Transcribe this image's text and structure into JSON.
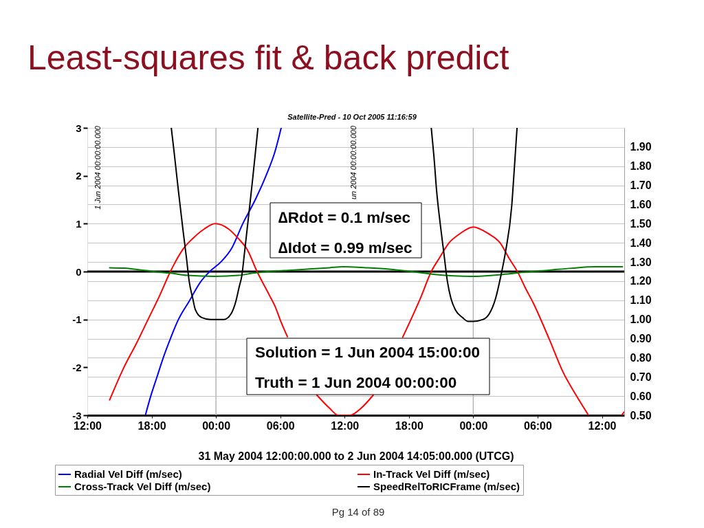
{
  "chart_data": {
    "type": "line",
    "title": "Least-squares fit & back predict",
    "subtitle": "Satellite-Pred - 10 Oct 2005 11:16:59",
    "xlabel": "31 May 2004 12:00:00.000  to  2 Jun 2004 14:05:00.000 (UTCG)",
    "annotations": [
      "1 Jun 2004 00:00:00.000",
      "un 2004 00:00:00.000",
      "∆Rdot = 0.1 m/sec",
      "∆Idot = 0.99 m/sec",
      "Solution = 1 Jun 2004 15:00:00",
      "Truth = 1 Jun 2004 00:00:00",
      "Pg 14 of 89"
    ],
    "xlim": [
      "2004-05-31T12:00",
      "2004-06-02T14:05"
    ],
    "xticks": [
      {
        "value": "2004-05-31T12:00",
        "label": "12:00"
      },
      {
        "value": "2004-05-31T18:00",
        "label": "18:00"
      },
      {
        "value": "2004-06-01T00:00",
        "label": "00:00"
      },
      {
        "value": "2004-06-01T06:00",
        "label": "06:00"
      },
      {
        "value": "2004-06-01T12:00",
        "label": "12:00"
      },
      {
        "value": "2004-06-01T18:00",
        "label": "18:00"
      },
      {
        "value": "2004-06-02T00:00",
        "label": "00:00"
      },
      {
        "value": "2004-06-02T06:00",
        "label": "06:00"
      },
      {
        "value": "2004-06-02T12:00",
        "label": "12:00"
      }
    ],
    "ylim": [
      -3,
      3
    ],
    "yticks": [
      -3,
      -2,
      -1,
      0,
      1,
      2,
      3
    ],
    "y2lim": [
      0.5,
      2.0
    ],
    "y2ticks": [
      {
        "value": 0.5,
        "label": "0.50"
      },
      {
        "value": 0.6,
        "label": "0.60"
      },
      {
        "value": 0.7,
        "label": "0.70"
      },
      {
        "value": 0.8,
        "label": "0.80"
      },
      {
        "value": 0.9,
        "label": "0.90"
      },
      {
        "value": 1.0,
        "label": "1.00"
      },
      {
        "value": 1.1,
        "label": "1.10"
      },
      {
        "value": 1.2,
        "label": "1.20"
      },
      {
        "value": 1.3,
        "label": "1.30"
      },
      {
        "value": 1.4,
        "label": "1.40"
      },
      {
        "value": 1.5,
        "label": "1.50"
      },
      {
        "value": 1.6,
        "label": "1.60"
      },
      {
        "value": 1.7,
        "label": "1.70"
      },
      {
        "value": 1.8,
        "label": "1.80"
      },
      {
        "value": 1.9,
        "label": "1.90"
      }
    ],
    "grid": "y",
    "legend": "bottom",
    "ref_lines": [
      {
        "axis": "x",
        "value": "2004-06-01T00:00",
        "color": "#b4b4b4"
      },
      {
        "axis": "x",
        "value": "2004-06-02T00:00",
        "color": "#b4b4b4"
      },
      {
        "axis": "y",
        "value": 0,
        "color": "#000000"
      }
    ],
    "series": [
      {
        "name": "Radial Vel Diff (m/sec)",
        "color": "#0000ff",
        "x": [
          "2004-05-31T17:25",
          "2004-05-31T17:55",
          "2004-05-31T18:30",
          "2004-05-31T19:05",
          "2004-05-31T19:45",
          "2004-05-31T20:30",
          "2004-05-31T21:30",
          "2004-05-31T22:35",
          "2004-05-31T23:25",
          "2004-06-01T00:30",
          "2004-06-01T01:30",
          "2004-06-01T02:30",
          "2004-06-01T03:40",
          "2004-06-01T04:40",
          "2004-06-01T05:30",
          "2004-06-01T06:05"
        ],
        "values": [
          -3.0,
          -2.6,
          -2.2,
          -1.8,
          -1.4,
          -1.0,
          -0.62,
          -0.21,
          0.0,
          0.21,
          0.5,
          1.0,
          1.5,
          2.0,
          2.5,
          3.0
        ]
      },
      {
        "name": "In-Track Vel Diff (m/sec)",
        "color": "#ff0000",
        "x": [
          "2004-05-31T14:05",
          "2004-05-31T15:25",
          "2004-05-31T16:35",
          "2004-05-31T17:40",
          "2004-05-31T18:45",
          "2004-05-31T19:45",
          "2004-05-31T21:00",
          "2004-05-31T21:50",
          "2004-05-31T22:55",
          "2004-05-31T23:55",
          "2004-06-01T01:10",
          "2004-06-01T02:05",
          "2004-06-01T02:55",
          "2004-06-01T03:50",
          "2004-06-01T05:00",
          "2004-06-01T05:30",
          "2004-06-01T06:05",
          "2004-06-01T06:40",
          "2004-06-01T08:00",
          "2004-06-01T09:25",
          "2004-06-01T10:35",
          "2004-06-01T11:25",
          "2004-06-01T12:30",
          "2004-06-01T13:30",
          "2004-06-01T14:40",
          "2004-06-01T16:00",
          "2004-06-01T17:25",
          "2004-06-01T18:15",
          "2004-06-01T19:05",
          "2004-06-01T20:05",
          "2004-06-01T20:50",
          "2004-06-01T21:45",
          "2004-06-01T22:45",
          "2004-06-02T00:00",
          "2004-06-02T01:25",
          "2004-06-02T02:30",
          "2004-06-02T03:20",
          "2004-06-02T04:10",
          "2004-06-02T04:50",
          "2004-06-02T05:35",
          "2004-06-02T07:05",
          "2004-06-02T08:20",
          "2004-06-02T09:40",
          "2004-06-02T10:45",
          "2004-06-02T12:00",
          "2004-06-02T13:50",
          "2004-06-02T14:05"
        ],
        "values": [
          -2.68,
          -2.0,
          -1.5,
          -1.0,
          -0.5,
          0.0,
          0.49,
          0.69,
          0.89,
          1.0,
          0.89,
          0.69,
          0.46,
          0.0,
          -0.5,
          -0.72,
          -1.06,
          -1.36,
          null,
          -2.58,
          -2.85,
          -3.0,
          -3.0,
          -2.86,
          -2.58,
          null,
          -1.37,
          -0.97,
          -0.55,
          0.0,
          0.28,
          0.6,
          0.79,
          0.93,
          0.79,
          0.6,
          0.28,
          -0.02,
          -0.33,
          -0.65,
          -1.41,
          -2.08,
          -2.61,
          -3.0,
          null,
          -3.0,
          -2.93
        ]
      },
      {
        "name": "Cross-Track Vel Diff (m/sec)",
        "color": "#008000",
        "x": [
          "2004-05-31T14:05",
          "2004-05-31T15:25",
          "2004-05-31T17:30",
          "2004-05-31T18:35",
          "2004-05-31T19:40",
          "2004-05-31T21:20",
          "2004-05-31T23:55",
          "2004-06-01T02:05",
          "2004-06-01T03:35",
          "2004-06-01T04:50",
          "2004-06-01T06:20",
          "2004-06-01T08:30",
          "2004-06-01T10:35",
          "2004-06-01T11:50",
          "2004-06-01T14:00",
          "2004-06-01T16:10",
          "2004-06-01T18:15",
          "2004-06-01T20:25",
          "2004-06-01T23:50",
          "2004-06-02T02:45",
          "2004-06-02T04:55",
          "2004-06-02T07:05",
          "2004-06-02T09:10",
          "2004-06-02T11:20",
          "2004-06-02T13:55"
        ],
        "values": [
          0.08,
          0.07,
          0.02,
          -0.01,
          -0.03,
          -0.08,
          -0.1,
          -0.08,
          -0.03,
          0.0,
          0.02,
          0.05,
          0.08,
          0.1,
          0.08,
          0.05,
          0.0,
          -0.06,
          -0.1,
          -0.06,
          -0.01,
          0.03,
          0.07,
          0.1,
          0.1
        ]
      },
      {
        "name": "SpeedRelToRICFrame (m/sec)",
        "color": "#000000",
        "axis": "y2",
        "x": [
          "2004-05-31T19:50",
          "2004-05-31T20:05",
          "2004-05-31T20:30",
          "2004-05-31T20:55",
          "2004-05-31T21:15",
          "2004-05-31T21:30",
          "2004-05-31T21:50",
          "2004-05-31T22:05",
          "2004-05-31T22:40",
          "2004-05-31T23:30",
          "2004-06-01T00:45",
          "2004-06-01T01:25",
          "2004-06-01T01:50",
          "2004-06-01T02:10",
          "2004-06-01T02:25",
          "2004-06-01T02:40",
          "2004-06-01T03:05",
          "2004-06-01T03:25",
          "2004-06-01T03:45",
          "2004-06-01T03:55",
          "2004-06-01T12:00",
          "2004-06-01T20:05",
          "2004-06-01T20:20",
          "2004-06-01T20:35",
          "2004-06-01T20:55",
          "2004-06-01T21:15",
          "2004-06-01T21:35",
          "2004-06-01T21:55",
          "2004-06-01T22:20",
          "2004-06-01T23:00",
          "2004-06-01T23:30",
          "2004-06-02T00:00",
          "2004-06-02T00:55",
          "2004-06-02T01:30",
          "2004-06-02T02:05",
          "2004-06-02T02:35",
          "2004-06-02T03:00",
          "2004-06-02T03:35",
          "2004-06-02T03:50",
          "2004-06-02T04:05"
        ],
        "values": [
          2.0,
          1.88,
          1.67,
          1.47,
          1.32,
          1.2,
          1.11,
          1.05,
          1.01,
          1.0,
          1.0,
          1.03,
          1.09,
          1.17,
          1.23,
          1.35,
          1.56,
          1.73,
          1.91,
          2.0,
          null,
          2.0,
          1.85,
          1.67,
          1.5,
          1.35,
          1.2,
          1.11,
          1.05,
          1.01,
          0.99,
          0.99,
          1.0,
          1.03,
          1.11,
          1.23,
          1.35,
          1.59,
          1.79,
          2.0
        ]
      }
    ]
  }
}
